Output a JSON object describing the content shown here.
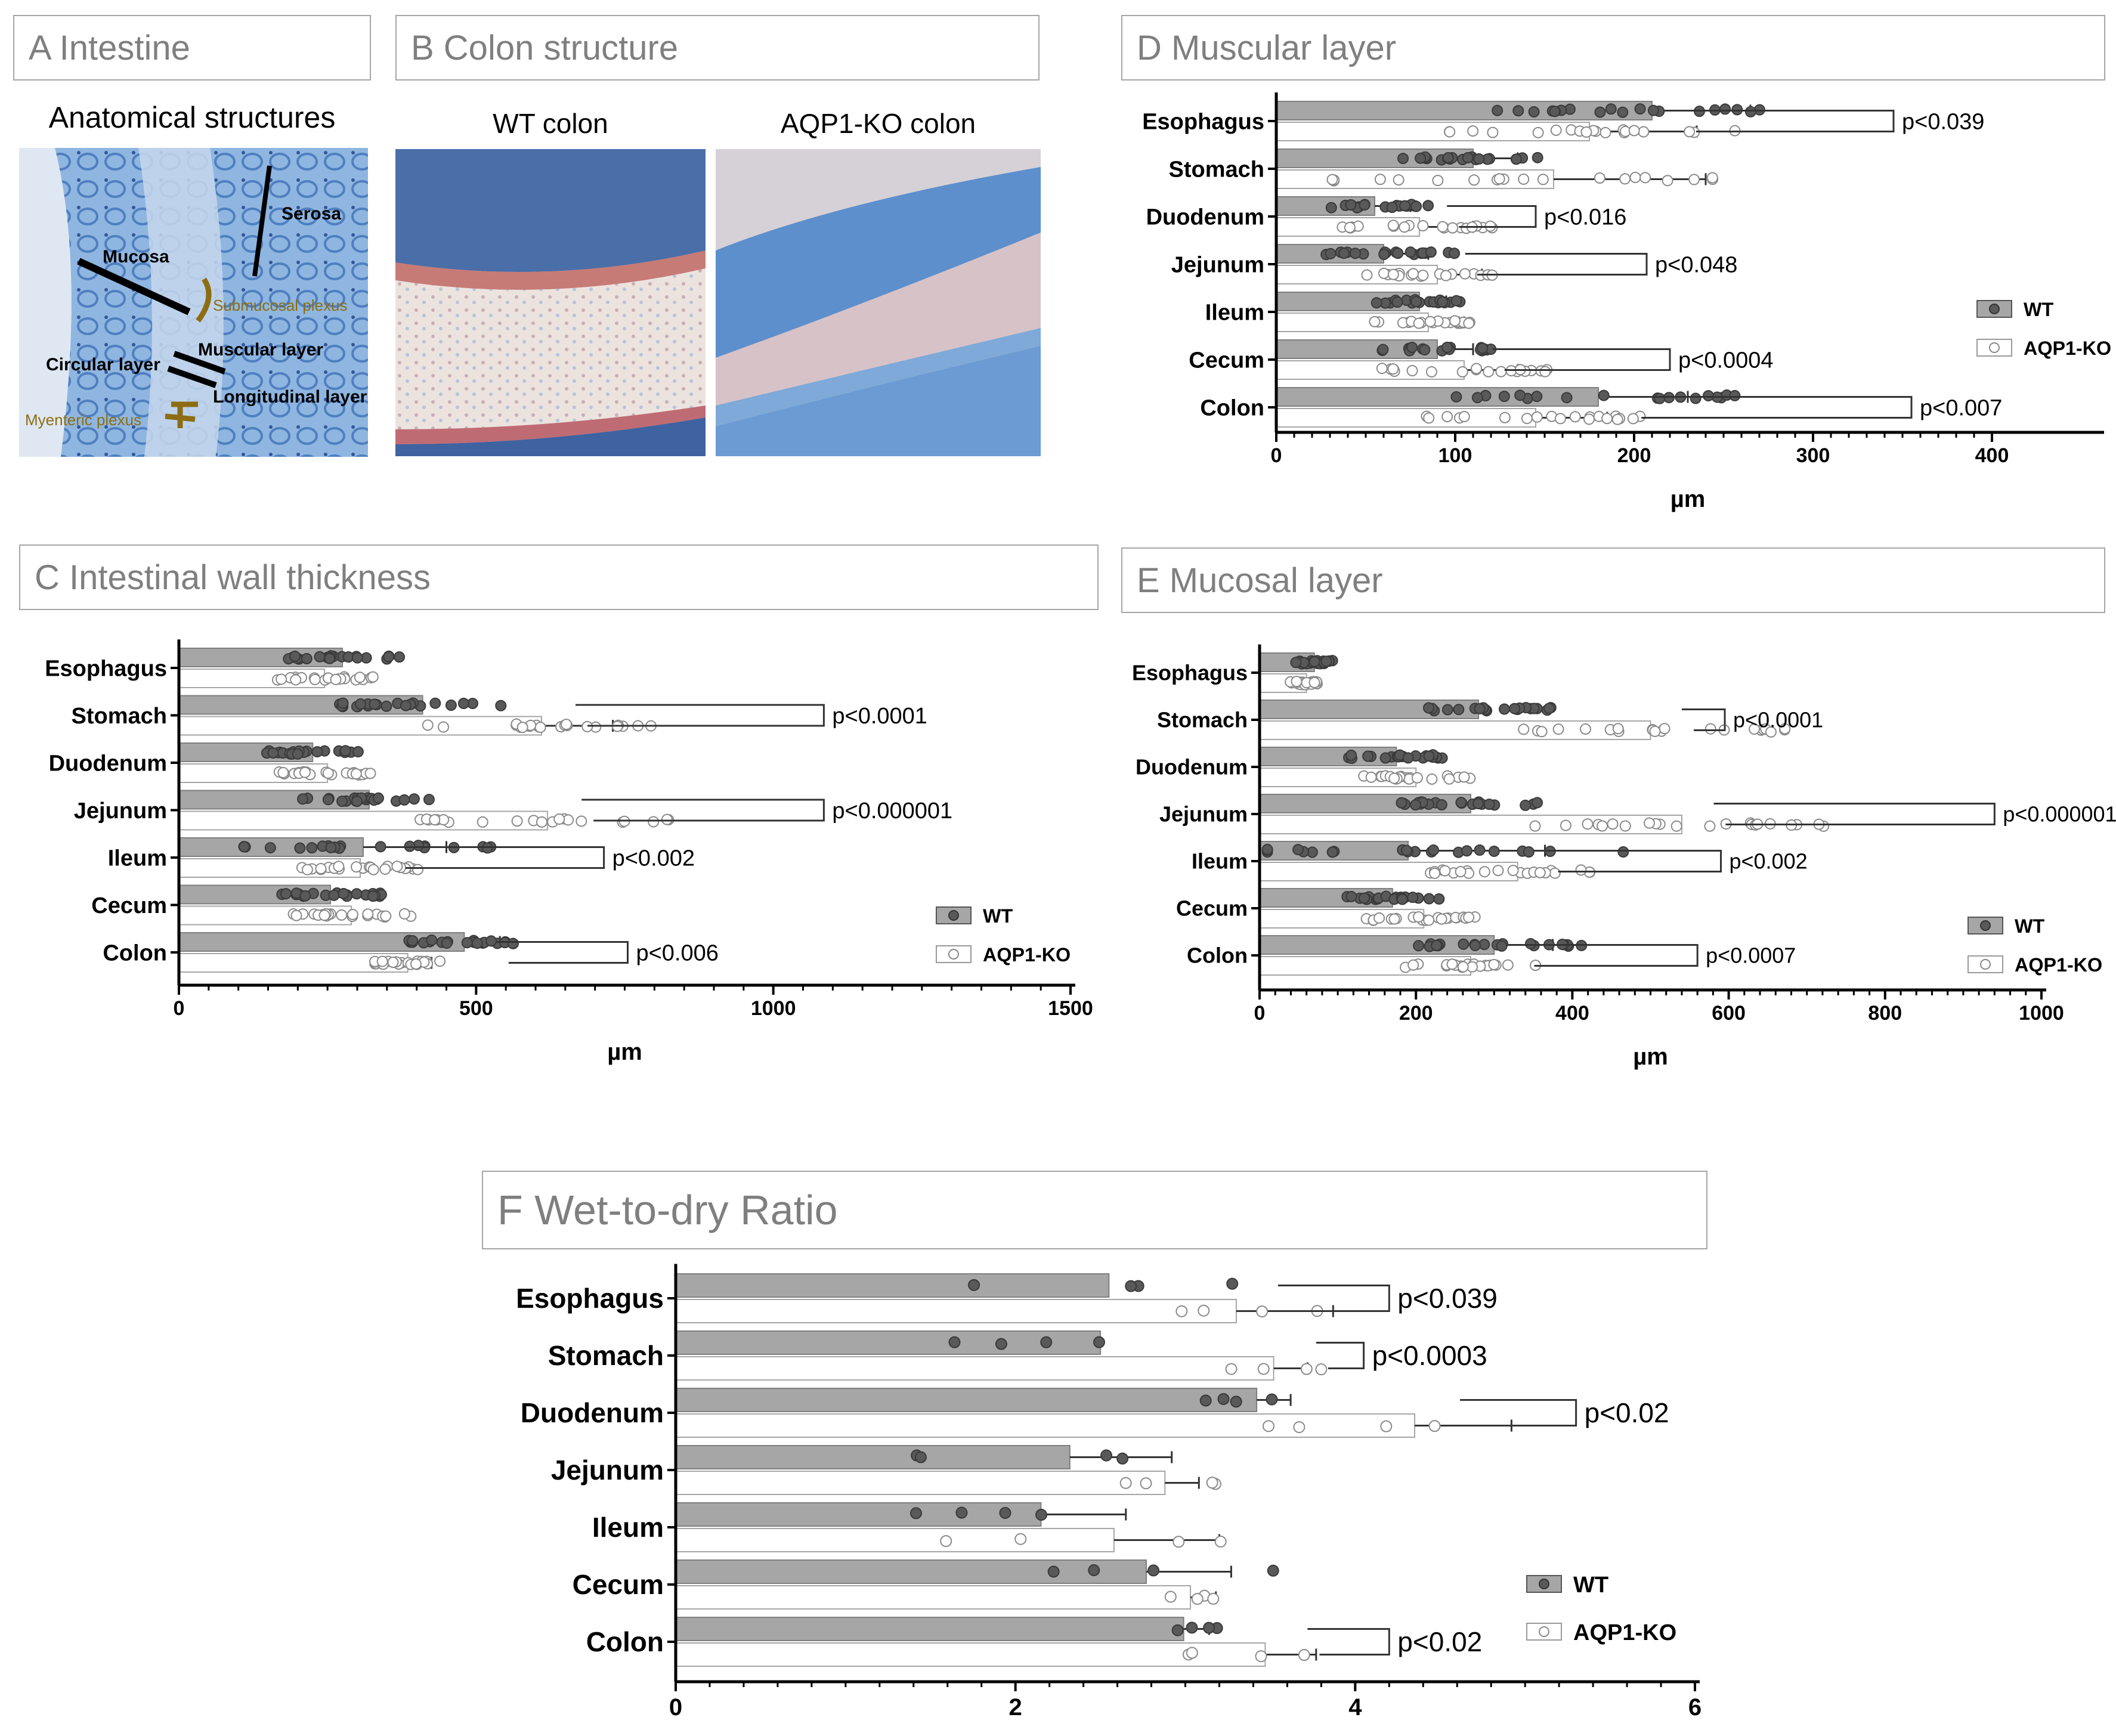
{
  "panels": {
    "a": {
      "title": "A Intestine",
      "heading": "Anatomical structures",
      "labels": {
        "serosa": "Serosa",
        "mucosa": "Mucosa",
        "submucosal": "Submucosal plexus",
        "circular": "Circular layer",
        "muscular": "Muscular layer",
        "longitudinal": "Longitudinal layer",
        "myenteric": "Myenteric plexus"
      }
    },
    "b": {
      "title": "B Colon structure",
      "wt_caption": "WT colon",
      "ko_caption": "AQP1-KO colon"
    },
    "c": {
      "title": "C Intestinal wall thickness"
    },
    "d": {
      "title": "D Muscular layer"
    },
    "e": {
      "title": "E Mucosal layer"
    },
    "f": {
      "title": "F Wet-to-dry Ratio"
    }
  },
  "colors": {
    "wt_bar": "#a6a6a6",
    "wt_dot": "#595959",
    "ko_bar": "#ffffff",
    "ko_dot": "#ffffff",
    "axis": "#000000",
    "tissue": "#7ba7d6",
    "tissue_dark": "#3f6fb5",
    "annotation": "#8c6d12"
  },
  "chart_data": [
    {
      "id": "C",
      "type": "bar",
      "orientation": "horizontal",
      "categories": [
        "Esophagus",
        "Stomach",
        "Duodenum",
        "Jejunum",
        "Ileum",
        "Cecum",
        "Colon"
      ],
      "series": [
        {
          "name": "WT",
          "values": [
            275,
            410,
            225,
            320,
            310,
            255,
            480
          ],
          "errors": [
            0,
            0,
            0,
            0,
            140,
            0,
            60
          ]
        },
        {
          "name": "AQP1-KO",
          "values": [
            245,
            610,
            250,
            620,
            305,
            290,
            385
          ],
          "errors": [
            0,
            120,
            0,
            0,
            0,
            0,
            40
          ]
        }
      ],
      "xlim": [
        0,
        1500
      ],
      "xticks": [
        "0",
        "500",
        "1000",
        "1500"
      ],
      "xlabel": "µm",
      "legend": "bottom-right",
      "pvalues": [
        {
          "label": "p<0.0001",
          "cat": "Stomach",
          "x": 1085
        },
        {
          "label": "p<0.000001",
          "cat": "Jejunum",
          "x": 1085
        },
        {
          "label": "p<0.002",
          "cat": "Ileum",
          "x": 715
        },
        {
          "label": "p<0.006",
          "cat": "Colon",
          "x": 755
        }
      ]
    },
    {
      "id": "D",
      "type": "bar",
      "orientation": "horizontal",
      "categories": [
        "Esophagus",
        "Stomach",
        "Duodenum",
        "Jejunum",
        "Ileum",
        "Cecum",
        "Colon"
      ],
      "series": [
        {
          "name": "WT",
          "values": [
            210,
            110,
            55,
            60,
            80,
            90,
            180
          ],
          "errors": [
            55,
            25,
            20,
            25,
            15,
            20,
            50
          ]
        },
        {
          "name": "AQP1-KO",
          "values": [
            175,
            155,
            80,
            90,
            85,
            105,
            145
          ],
          "errors": [
            60,
            85,
            30,
            25,
            20,
            30,
            40
          ]
        }
      ],
      "xlim": [
        0,
        460
      ],
      "xticks": [
        "0",
        "100",
        "200",
        "300",
        "400"
      ],
      "xlabel": "µm",
      "legend": "right",
      "pvalues": [
        {
          "label": "p<0.039",
          "cat": "Esophagus",
          "x": 345
        },
        {
          "label": "p<0.016",
          "cat": "Duodenum",
          "x": 145
        },
        {
          "label": "p<0.048",
          "cat": "Jejunum",
          "x": 207
        },
        {
          "label": "p<0.0004",
          "cat": "Cecum",
          "x": 220
        },
        {
          "label": "p<0.007",
          "cat": "Colon",
          "x": 355
        }
      ]
    },
    {
      "id": "E",
      "type": "bar",
      "orientation": "horizontal",
      "categories": [
        "Esophagus",
        "Stomach",
        "Duodenum",
        "Jejunum",
        "Ileum",
        "Cecum",
        "Colon"
      ],
      "series": [
        {
          "name": "WT",
          "values": [
            70,
            280,
            175,
            270,
            190,
            170,
            300
          ],
          "errors": [
            0,
            0,
            0,
            0,
            175,
            0,
            75
          ]
        },
        {
          "name": "AQP1-KO",
          "values": [
            60,
            500,
            200,
            540,
            330,
            210,
            270
          ],
          "errors": [
            0,
            0,
            0,
            0,
            0,
            0,
            0
          ]
        }
      ],
      "xlim": [
        0,
        1000
      ],
      "xticks": [
        "0",
        "200",
        "400",
        "600",
        "800",
        "1000"
      ],
      "xlabel": "µm",
      "legend": "bottom-right",
      "pvalues": [
        {
          "label": "p<0.0001",
          "cat": "Stomach",
          "x": 595
        },
        {
          "label": "p<0.000001",
          "cat": "Jejunum",
          "x": 940
        },
        {
          "label": "p<0.002",
          "cat": "Ileum",
          "x": 590
        },
        {
          "label": "p<0.0007",
          "cat": "Colon",
          "x": 560
        }
      ]
    },
    {
      "id": "F",
      "type": "bar",
      "orientation": "horizontal",
      "categories": [
        "Esophagus",
        "Stomach",
        "Duodenum",
        "Jejunum",
        "Ileum",
        "Cecum",
        "Colon"
      ],
      "series": [
        {
          "name": "WT",
          "values": [
            2.55,
            2.5,
            3.42,
            2.32,
            2.15,
            2.77,
            2.99
          ],
          "errors": [
            0,
            0,
            0.2,
            0.6,
            0.5,
            0.5,
            0.15
          ]
        },
        {
          "name": "AQP1-KO",
          "values": [
            3.3,
            3.52,
            4.35,
            2.88,
            2.58,
            3.03,
            3.47
          ],
          "errors": [
            0.57,
            0.2,
            0.57,
            0.2,
            0.62,
            0.15,
            0.3
          ]
        }
      ],
      "xlim": [
        0,
        6
      ],
      "xticks": [
        "0",
        "2",
        "4",
        "6"
      ],
      "xlabel": "",
      "legend": "bottom-right",
      "pvalues": [
        {
          "label": "p<0.039",
          "cat": "Esophagus",
          "x": 4.2
        },
        {
          "label": "p<0.0003",
          "cat": "Stomach",
          "x": 4.05
        },
        {
          "label": "p<0.02",
          "cat": "Duodenum",
          "x": 5.3
        },
        {
          "label": "p<0.02",
          "cat": "Colon",
          "x": 4.2
        }
      ]
    }
  ]
}
